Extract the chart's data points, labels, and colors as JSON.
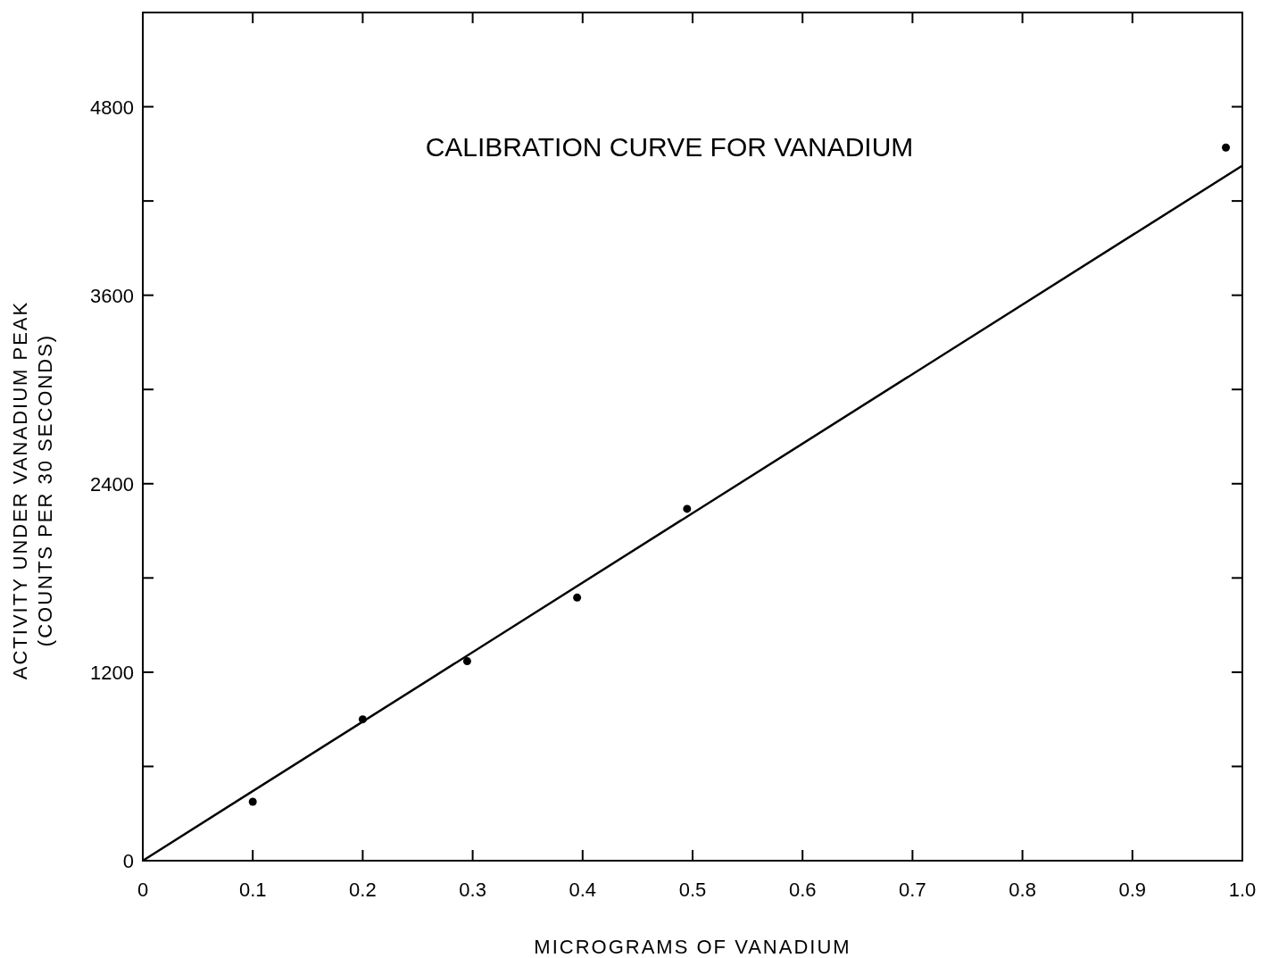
{
  "chart_data": {
    "type": "scatter",
    "title": "CALIBRATION CURVE FOR VANADIUM",
    "xlabel": "MICROGRAMS OF VANADIUM",
    "ylabel": "ACTIVITY UNDER VANADIUM PEAK\n(COUNTS PER 30 SECONDS)",
    "xlim": [
      0,
      1.0
    ],
    "ylim": [
      0,
      5400
    ],
    "xticks": [
      0,
      0.1,
      0.2,
      0.3,
      0.4,
      0.5,
      0.6,
      0.7,
      0.8,
      0.9,
      {
        "value": 1.0,
        "label": "1.0"
      }
    ],
    "yticks": [
      0,
      {
        "value": 600,
        "label": null
      },
      1200,
      {
        "value": 1800,
        "label": null
      },
      2400,
      {
        "value": 3000,
        "label": null
      },
      3600,
      {
        "value": 4200,
        "label": null
      },
      4800
    ],
    "grid": false,
    "marker": "circle",
    "series": [
      {
        "color": "#000000",
        "x": [
          0.1,
          0.2,
          0.295,
          0.395,
          0.495,
          0.985
        ],
        "values": [
          375,
          900,
          1270,
          1675,
          2240,
          4540
        ]
      },
      {
        "type": "line",
        "color": "#000000",
        "marker": "none",
        "line_style": "solid",
        "x": [
          0,
          1.0
        ],
        "values": [
          0,
          4425
        ]
      }
    ]
  }
}
